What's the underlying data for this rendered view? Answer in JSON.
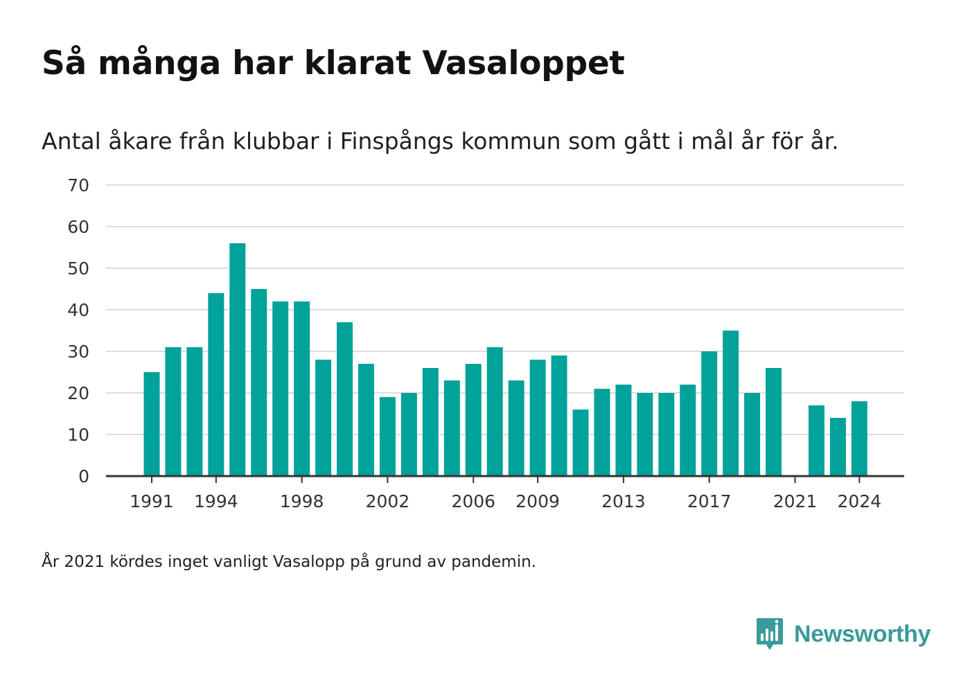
{
  "title": "Så många har klarat Vasaloppet",
  "subtitle": "Antal åkare från klubbar i Finspångs kommun som gått i mål år för år.",
  "footnote": "År 2021 kördes inget vanligt Vasalopp på grund av pandemin.",
  "brand": {
    "name": "Newsworthy",
    "icon": "newsworthy-logo-icon",
    "color": "#3a9a9c"
  },
  "colors": {
    "bar": "#00a29a",
    "grid": "#dddddd",
    "axis": "#333333",
    "text": "#333333"
  },
  "chart_data": {
    "type": "bar",
    "categories": [
      1991,
      1992,
      1993,
      1994,
      1995,
      1996,
      1997,
      1998,
      1999,
      2000,
      2001,
      2002,
      2003,
      2004,
      2005,
      2006,
      2007,
      2008,
      2009,
      2010,
      2011,
      2012,
      2013,
      2014,
      2015,
      2016,
      2017,
      2018,
      2019,
      2020,
      2021,
      2022,
      2023,
      2024
    ],
    "values": [
      25,
      31,
      31,
      44,
      56,
      45,
      42,
      42,
      28,
      37,
      27,
      19,
      20,
      26,
      23,
      27,
      31,
      23,
      28,
      29,
      16,
      21,
      22,
      20,
      20,
      22,
      30,
      35,
      20,
      26,
      null,
      17,
      14,
      18
    ],
    "x_tick_labels": [
      "1991",
      "1994",
      "1998",
      "2002",
      "2006",
      "2009",
      "2013",
      "2017",
      "2021",
      "2024"
    ],
    "y_ticks": [
      0,
      10,
      20,
      30,
      40,
      50,
      60,
      70
    ],
    "ylim": [
      0,
      70
    ],
    "xlabel": "",
    "ylabel": "",
    "grid": true,
    "legend": false
  }
}
